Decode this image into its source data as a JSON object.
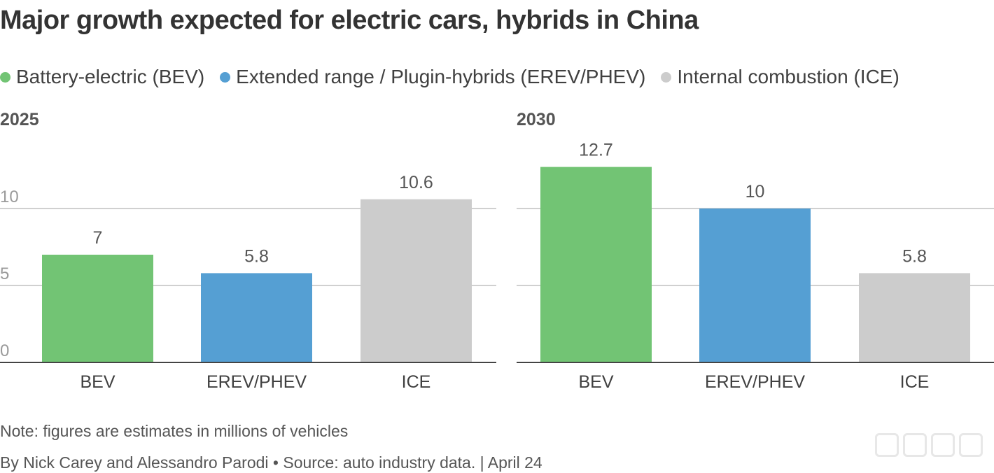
{
  "title": "Major growth expected for electric cars, hybrids in China",
  "legend": [
    {
      "label": "Battery-electric (BEV)",
      "color": "#72c474"
    },
    {
      "label": "Extended range / Plugin-hybrids (EREV/PHEV)",
      "color": "#559fd3"
    },
    {
      "label": "Internal combustion (ICE)",
      "color": "#cccccc"
    }
  ],
  "chart_data": [
    {
      "type": "bar",
      "title": "2025",
      "categories": [
        "BEV",
        "EREV/PHEV",
        "ICE"
      ],
      "values": [
        7,
        5.8,
        10.6
      ],
      "value_labels": [
        "7",
        "5.8",
        "10.6"
      ],
      "colors": [
        "#72c474",
        "#559fd3",
        "#cccccc"
      ],
      "yticks": [
        "0",
        "5",
        "10"
      ],
      "ylim": [
        0,
        14
      ],
      "grid": true
    },
    {
      "type": "bar",
      "title": "2030",
      "categories": [
        "BEV",
        "EREV/PHEV",
        "ICE"
      ],
      "values": [
        12.7,
        10,
        5.8
      ],
      "value_labels": [
        "12.7",
        "10",
        "5.8"
      ],
      "colors": [
        "#72c474",
        "#559fd3",
        "#cccccc"
      ],
      "yticks": [
        "0",
        "5",
        "10"
      ],
      "ylim": [
        0,
        14
      ],
      "grid": true
    }
  ],
  "footer": {
    "note": "Note: figures are estimates in millions of vehicles",
    "credit": "By Nick Carey and Alessandro Parodi • Source: auto industry data. | April 24"
  }
}
